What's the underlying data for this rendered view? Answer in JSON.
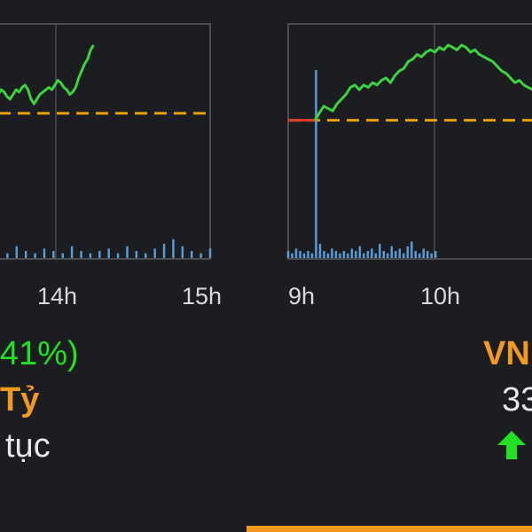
{
  "chart_data": [
    {
      "type": "line",
      "x_ticks": [
        "14h",
        "15h"
      ],
      "reference_color": "#e8a000",
      "price_color": "#3fd13f",
      "volume_color": "#5b9bd5",
      "frame_color": "#4a4c52",
      "series": [
        {
          "values": [
            0.7,
            0.72,
            0.71,
            0.69,
            0.68,
            0.7,
            0.72,
            0.71,
            0.73,
            0.74,
            0.72,
            0.68,
            0.66,
            0.68,
            0.7,
            0.71,
            0.72,
            0.73,
            0.72,
            0.74,
            0.76,
            0.75,
            0.73,
            0.72,
            0.7,
            0.71,
            0.73,
            0.77,
            0.8,
            0.83,
            0.85,
            0.89,
            0.91
          ]
        },
        {
          "values": [
            0.04,
            0.02,
            0.05,
            0.03,
            0.02,
            0.04,
            0.03,
            0.02,
            0.05,
            0.03,
            0.02,
            0.03,
            0.04,
            0.02,
            0.05,
            0.03,
            0.02,
            0.04,
            0.06,
            0.08,
            0.05,
            0.03,
            0.02,
            0.04
          ]
        }
      ]
    },
    {
      "type": "line",
      "x_ticks": [
        "9h",
        "10h"
      ],
      "series": [
        {
          "values": [
            0.59,
            0.59,
            0.59,
            0.59,
            0.59,
            0.59,
            0.59,
            0.62,
            0.65,
            0.64,
            0.63,
            0.66,
            0.68,
            0.7,
            0.73,
            0.74,
            0.72,
            0.74,
            0.73,
            0.75,
            0.74,
            0.76,
            0.77,
            0.75,
            0.78,
            0.8,
            0.81,
            0.84,
            0.85,
            0.87,
            0.86,
            0.88,
            0.89,
            0.88,
            0.9,
            0.89,
            0.91,
            0.9,
            0.89,
            0.91,
            0.9,
            0.88,
            0.89,
            0.87,
            0.86,
            0.85,
            0.84,
            0.82,
            0.8,
            0.79,
            0.77,
            0.75,
            0.76,
            0.74,
            0.73,
            0.72,
            0.73,
            0.72,
            0.71
          ]
        },
        {
          "values": [
            0.03,
            0.02,
            0.04,
            0.03,
            0.02,
            0.03,
            0.02,
            0.8,
            0.06,
            0.03,
            0.02,
            0.04,
            0.03,
            0.02,
            0.03,
            0.02,
            0.04,
            0.03,
            0.05,
            0.02,
            0.03,
            0.04,
            0.02,
            0.06,
            0.03,
            0.02,
            0.05,
            0.03,
            0.04,
            0.02,
            0.05,
            0.07,
            0.03,
            0.02,
            0.04,
            0.03,
            0.02,
            0.03
          ]
        }
      ]
    }
  ],
  "stats": {
    "change_pct_fragment": "41%)",
    "value_unit_fragment": "Tỷ",
    "status_fragment": "tục",
    "index_name_fragment": "VN",
    "index_value_fragment": "33",
    "up_arrow": "up-arrow-icon"
  },
  "colors": {
    "accent": "#f29a1e",
    "up": "#22e022"
  }
}
